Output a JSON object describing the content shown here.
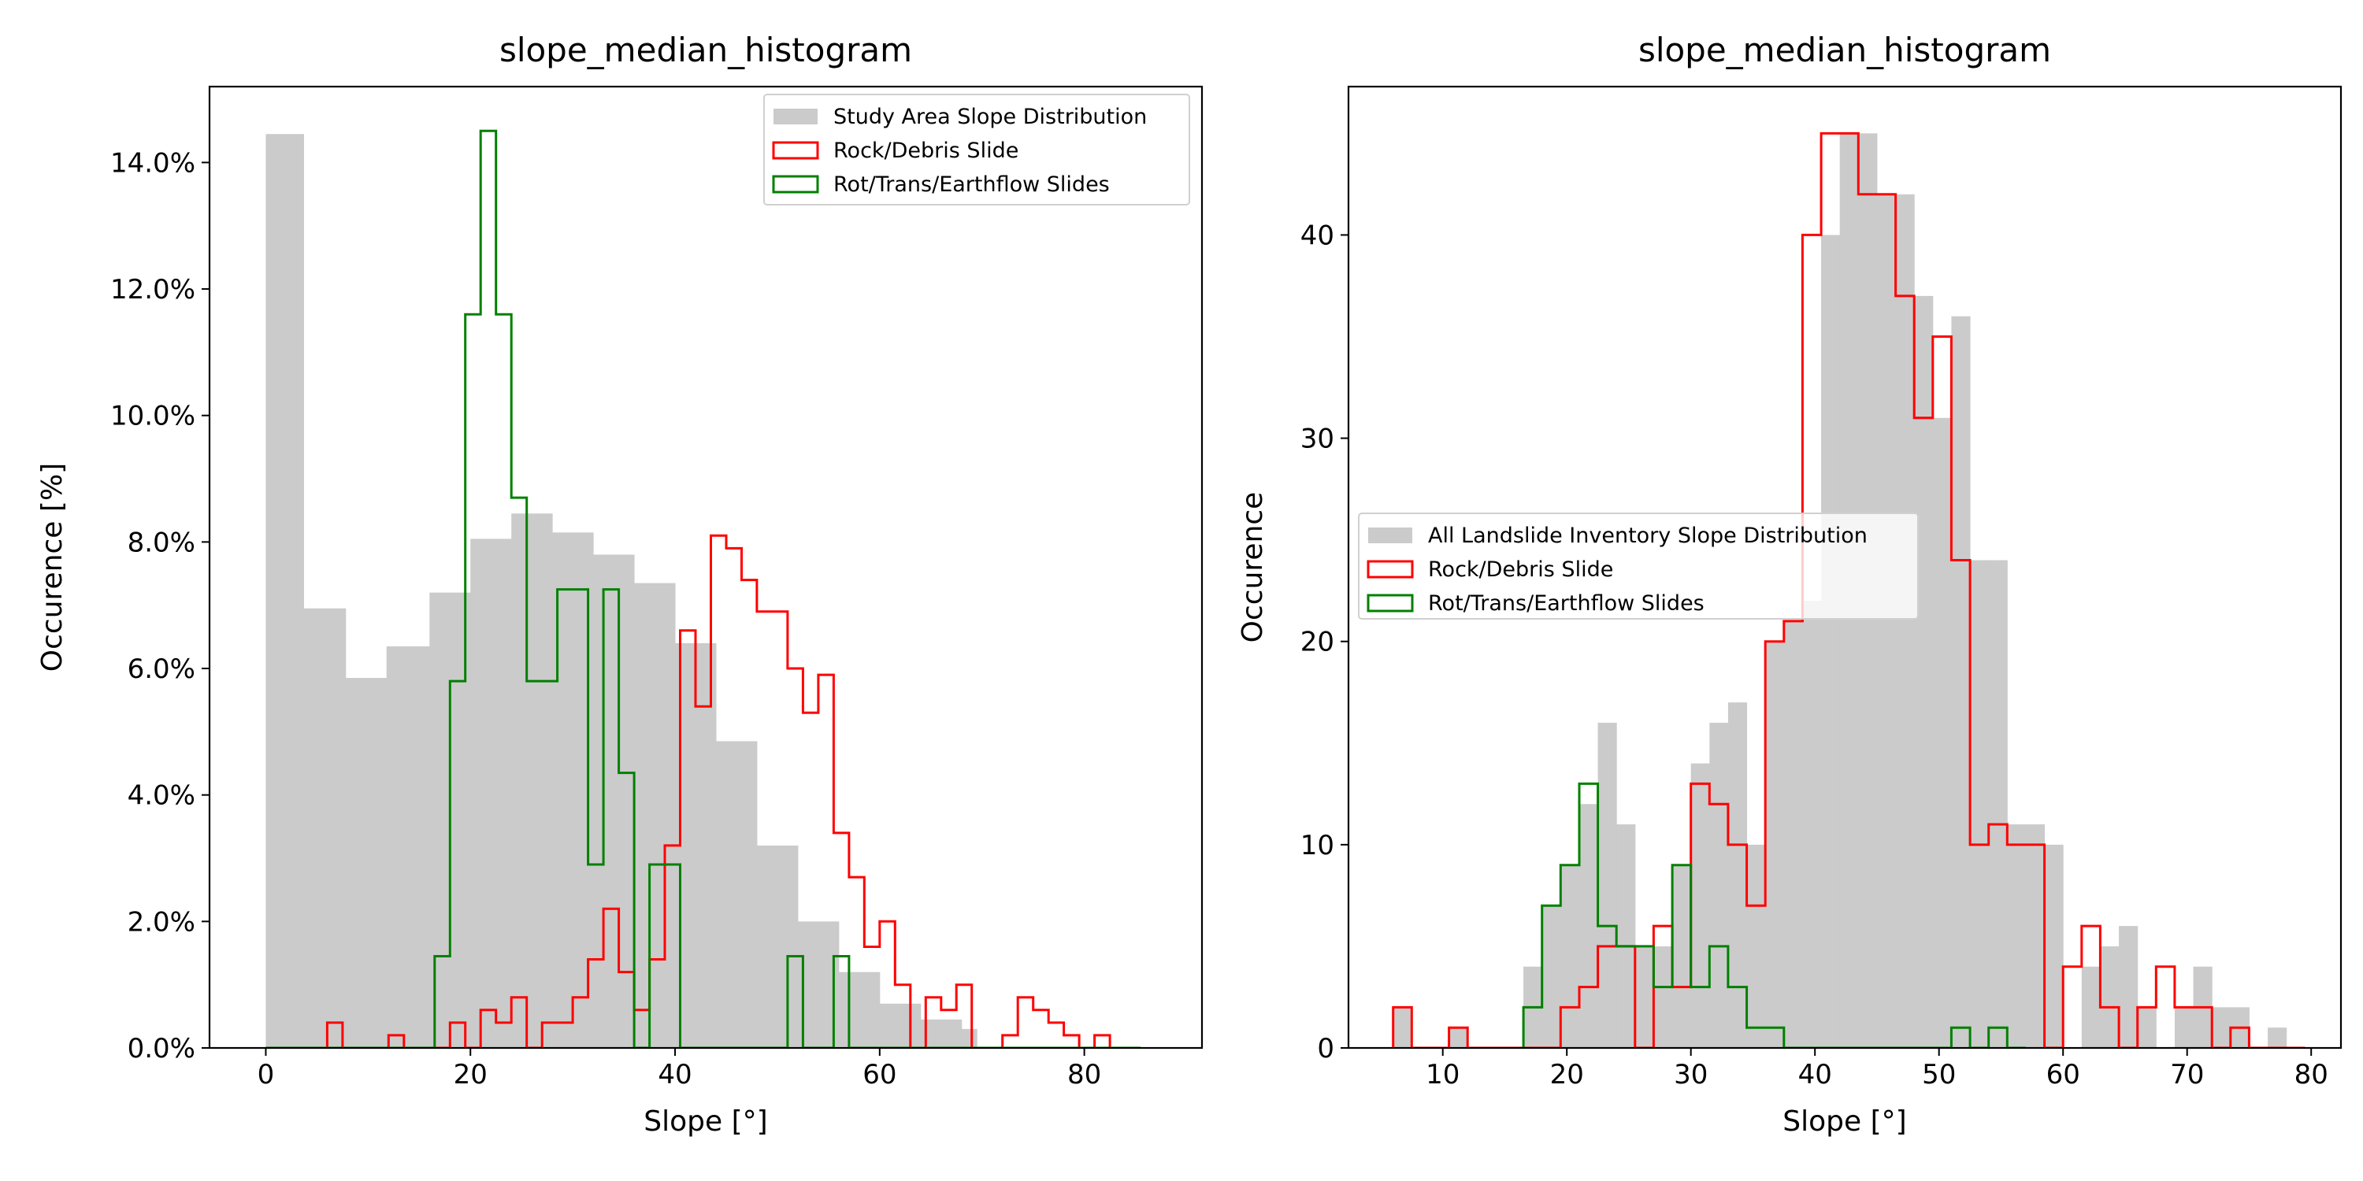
{
  "chart_data": [
    {
      "type": "histogram",
      "title": "slope_median_histogram",
      "xlabel": "Slope [°]",
      "ylabel": "Occurence [%]",
      "xlim": [
        -5.5,
        91.5
      ],
      "ylim": [
        0,
        15.2
      ],
      "xticks": [
        0,
        20,
        40,
        60,
        80
      ],
      "xtick_labels": [
        "0",
        "20",
        "40",
        "60",
        "80"
      ],
      "yticks": [
        0,
        2,
        4,
        6,
        8,
        10,
        12,
        14
      ],
      "ytick_labels": [
        "0.0%",
        "2.0%",
        "4.0%",
        "6.0%",
        "8.0%",
        "10.0%",
        "12.0%",
        "14.0%"
      ],
      "legend_position": "upper right",
      "series": [
        {
          "name": "Study Area Slope Distribution",
          "style": "filled",
          "color": "#cbcbcb",
          "edges": [
            0,
            3.7,
            7.8,
            11.8,
            16,
            20,
            24,
            28,
            32,
            36,
            40,
            44,
            48,
            52,
            56,
            60,
            64,
            68
          ],
          "values": [
            14.45,
            6.95,
            5.85,
            6.35,
            7.2,
            8.05,
            8.45,
            8.15,
            7.8,
            7.35,
            6.4,
            4.85,
            3.2,
            2.0,
            1.2,
            0.7,
            0.45,
            0.3
          ]
        },
        {
          "name": "Rock/Debris Slide",
          "style": "step",
          "color": "#ff0000",
          "edges": [
            0,
            1.5,
            3.0,
            4.5,
            6.0,
            7.5,
            9.0,
            10.5,
            12.0,
            13.5,
            15.0,
            16.5,
            18.0,
            19.5,
            21.0,
            22.5,
            24.0,
            25.5,
            27.0,
            28.5,
            30.0,
            31.5,
            33.0,
            34.5,
            36.0,
            37.5,
            39.0,
            40.5,
            42.0,
            43.5,
            45.0,
            46.5,
            48.0,
            49.5,
            51.0,
            52.5,
            54.0,
            55.5,
            57.0,
            58.5,
            60.0,
            61.5,
            63.0,
            64.5,
            66.0,
            67.5,
            69.0,
            70.5,
            72.0,
            73.5,
            75.0,
            76.5,
            78.0,
            79.5,
            81.0
          ],
          "values": [
            0,
            0,
            0,
            0,
            0.4,
            0,
            0,
            0,
            0.2,
            0,
            0,
            0,
            0.4,
            0,
            0.6,
            0.4,
            0.8,
            0,
            0.4,
            0.4,
            0.8,
            1.4,
            2.2,
            1.2,
            0.6,
            1.4,
            3.2,
            6.6,
            5.4,
            8.1,
            7.9,
            7.4,
            6.9,
            6.9,
            6.0,
            5.3,
            5.9,
            3.4,
            2.7,
            1.6,
            2.0,
            1.0,
            0,
            0.8,
            0.6,
            1.0,
            0,
            0,
            0.2,
            0.8,
            0.6,
            0.4,
            0.2,
            0,
            0.2
          ]
        },
        {
          "name": "Rot/Trans/Earthflow Slides",
          "style": "step",
          "color": "#008000",
          "edges": [
            0,
            1.5,
            3.0,
            4.5,
            6.0,
            7.5,
            9.0,
            10.5,
            12.0,
            13.5,
            15.0,
            16.5,
            18.0,
            19.5,
            21.0,
            22.5,
            24.0,
            25.5,
            27.0,
            28.5,
            30.0,
            31.5,
            33.0,
            34.5,
            36.0,
            37.5,
            39.0,
            40.5,
            42.0,
            43.5,
            45.0,
            46.5,
            48.0,
            49.5,
            51.0,
            52.5,
            54.0,
            55.5,
            57.0,
            58.5,
            60.0,
            61.5,
            63.0,
            64.5,
            66.0,
            67.5,
            69.0,
            70.5,
            72.0,
            73.5,
            75.0,
            76.5,
            78.0,
            79.5,
            81.0,
            82.5,
            84.0,
            85.5
          ],
          "values": [
            0,
            0,
            0,
            0,
            0,
            0,
            0,
            0,
            0,
            0,
            0,
            1.45,
            5.8,
            11.6,
            14.5,
            11.6,
            8.7,
            5.8,
            5.8,
            7.25,
            7.25,
            2.9,
            7.25,
            4.35,
            0,
            2.9,
            2.9,
            0,
            0,
            0,
            0,
            0,
            0,
            0,
            1.45,
            0,
            0,
            1.45,
            0,
            0,
            0,
            0,
            0,
            0,
            0,
            0,
            0,
            0,
            0,
            0,
            0,
            0,
            0,
            0,
            0,
            0,
            0
          ]
        }
      ]
    },
    {
      "type": "histogram",
      "title": "slope_median_histogram",
      "xlabel": "Slope [°]",
      "ylabel": "Occurence",
      "xlim": [
        2.4,
        82.4
      ],
      "ylim": [
        0,
        47.3
      ],
      "xticks": [
        10,
        20,
        30,
        40,
        50,
        60,
        70,
        80
      ],
      "xtick_labels": [
        "10",
        "20",
        "30",
        "40",
        "50",
        "60",
        "70",
        "80"
      ],
      "yticks": [
        0,
        10,
        20,
        30,
        40
      ],
      "ytick_labels": [
        "0",
        "10",
        "20",
        "30",
        "40"
      ],
      "legend_position": "center left",
      "series": [
        {
          "name": "All Landslide Inventory Slope Distribution",
          "style": "filled",
          "color": "#cbcbcb",
          "edges": [
            6,
            7.5,
            9,
            10.5,
            12,
            13.5,
            15,
            16.5,
            18,
            19.5,
            21,
            22.5,
            24,
            25.5,
            27,
            28.5,
            30,
            31.5,
            33,
            34.5,
            36,
            37.5,
            39,
            40.5,
            42,
            43.5,
            45,
            46.5,
            48,
            49.5,
            51,
            52.5,
            54,
            55.5,
            57,
            58.5,
            60,
            61.5,
            63,
            64.5,
            66,
            67.5,
            69,
            70.5,
            72,
            73.5,
            75,
            76.5,
            78
          ],
          "values": [
            2,
            0,
            0,
            1,
            0,
            0,
            0,
            4,
            7,
            9,
            12,
            16,
            11,
            5,
            5,
            9,
            14,
            16,
            17,
            10,
            20,
            21,
            22,
            40,
            45,
            45,
            42,
            42,
            37,
            31,
            36,
            24,
            24,
            11,
            11,
            10,
            0,
            4,
            5,
            6,
            2,
            0,
            2,
            4,
            2,
            2,
            0,
            1
          ]
        },
        {
          "name": "Rock/Debris Slide",
          "style": "step",
          "color": "#ff0000",
          "edges": [
            6,
            7.5,
            9,
            10.5,
            12,
            13.5,
            15,
            16.5,
            18,
            19.5,
            21,
            22.5,
            24,
            25.5,
            27,
            28.5,
            30,
            31.5,
            33,
            34.5,
            36,
            37.5,
            39,
            40.5,
            42,
            43.5,
            45,
            46.5,
            48,
            49.5,
            51,
            52.5,
            54,
            55.5,
            57,
            58.5,
            60,
            61.5,
            63,
            64.5,
            66,
            67.5,
            69,
            70.5,
            72,
            73.5,
            75,
            76.5,
            78,
            79.5
          ],
          "values": [
            2,
            0,
            0,
            1,
            0,
            0,
            0,
            0,
            0,
            2,
            3,
            5,
            5,
            0,
            6,
            3,
            13,
            12,
            10,
            7,
            20,
            21,
            40,
            45,
            45,
            42,
            42,
            37,
            31,
            35,
            24,
            10,
            11,
            10,
            10,
            0,
            4,
            6,
            2,
            0,
            2,
            4,
            2,
            2,
            0,
            1,
            0,
            0,
            0
          ]
        },
        {
          "name": "Rot/Trans/Earthflow Slides",
          "style": "step",
          "color": "#008000",
          "edges": [
            16.5,
            18,
            19.5,
            21,
            22.5,
            24,
            25.5,
            27,
            28.5,
            30,
            31.5,
            33,
            34.5,
            36,
            37.5,
            39,
            40.5,
            42,
            43.5,
            45,
            46.5,
            48,
            49.5,
            51,
            52.5,
            54,
            55.5,
            57
          ],
          "values": [
            2,
            7,
            9,
            13,
            6,
            5,
            5,
            3,
            9,
            3,
            5,
            3,
            1,
            1,
            0,
            0,
            0,
            0,
            0,
            0,
            0,
            0,
            0,
            1,
            0,
            1,
            0
          ]
        }
      ]
    }
  ]
}
